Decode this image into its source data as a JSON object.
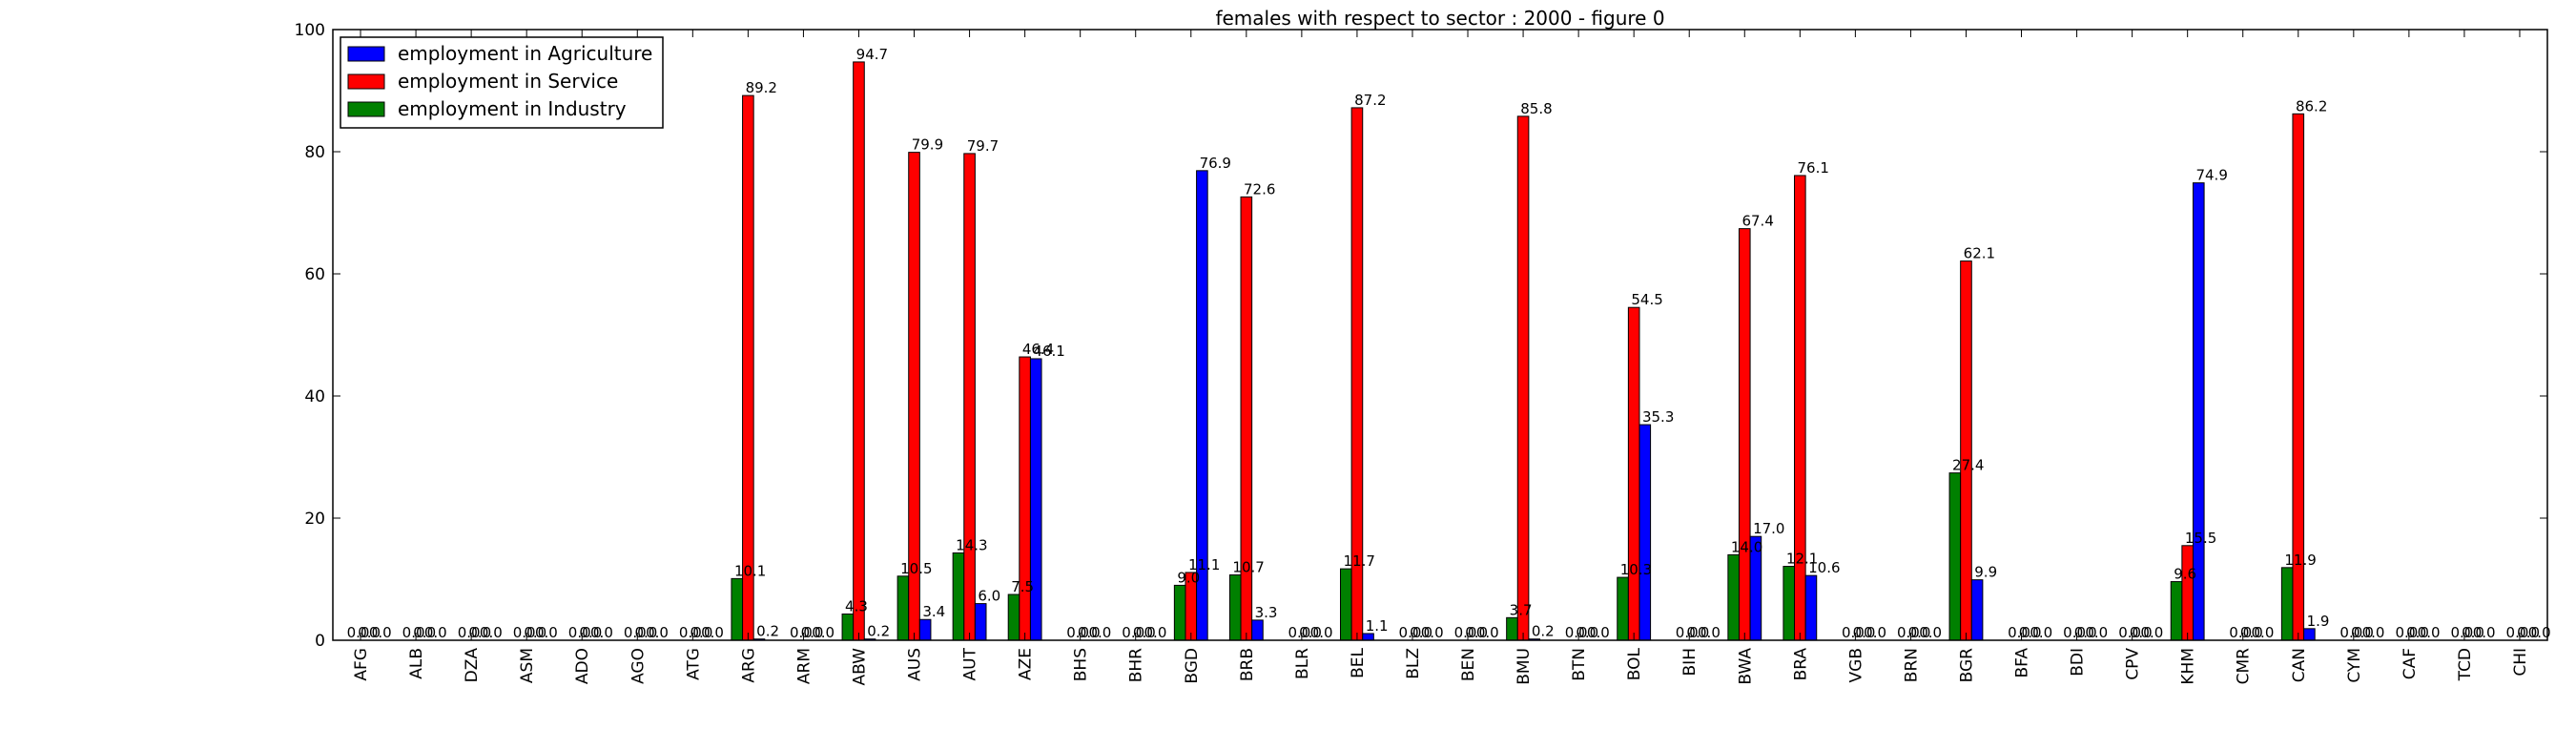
{
  "chart_data": {
    "type": "bar",
    "title": "females with respect to sector : 2000 - figure 0",
    "xlabel": "",
    "ylabel": "",
    "ylim": [
      0,
      100
    ],
    "yticks": [
      0,
      20,
      40,
      60,
      80,
      100
    ],
    "grid": false,
    "legend_position": "top-left",
    "categories": [
      "AFG",
      "ALB",
      "DZA",
      "ASM",
      "ADO",
      "AGO",
      "ATG",
      "ARG",
      "ARM",
      "ABW",
      "AUS",
      "AUT",
      "AZE",
      "BHS",
      "BHR",
      "BGD",
      "BRB",
      "BLR",
      "BEL",
      "BLZ",
      "BEN",
      "BMU",
      "BTN",
      "BOL",
      "BIH",
      "BWA",
      "BRA",
      "VGB",
      "BRN",
      "BGR",
      "BFA",
      "BDI",
      "CPV",
      "KHM",
      "CMR",
      "CAN",
      "CYM",
      "CAF",
      "TCD",
      "CHI"
    ],
    "series": [
      {
        "name": "employment in Industry",
        "color": "#008000",
        "values": [
          0,
          0,
          0,
          0,
          0,
          0,
          0,
          10.1,
          0,
          4.3,
          10.5,
          14.3,
          7.5,
          0,
          0,
          9.0,
          10.7,
          0,
          11.7,
          0,
          0,
          3.7,
          0,
          10.3,
          0,
          14.0,
          12.1,
          0,
          0,
          27.4,
          0,
          0,
          0,
          9.6,
          0,
          11.9,
          0,
          0,
          0,
          0
        ],
        "labels": [
          "0.0",
          "0.0",
          "0.0",
          "0.0",
          "0.0",
          "0.0",
          "0.0",
          "10.1",
          "0.0",
          "4.3",
          "10.5",
          "14.3",
          "7.5",
          "0.0",
          "0.0",
          "9.0",
          "10.7",
          "0.0",
          "11.7",
          "0.0",
          "0.0",
          "3.7",
          "0.0",
          "10.3",
          "0.0",
          "14.0",
          "12.1",
          "0.0",
          "0.0",
          "27.4",
          "0.0",
          "0.0",
          "0.0",
          "9.6",
          "0.0",
          "11.9",
          "0.0",
          "0.0",
          "0.0",
          "0.0"
        ]
      },
      {
        "name": "employment in Service",
        "color": "#ff0000",
        "values": [
          0,
          0,
          0,
          0,
          0,
          0,
          0,
          89.2,
          0,
          94.7,
          79.9,
          79.7,
          46.4,
          0,
          0,
          11.1,
          72.6,
          0,
          87.2,
          0,
          0,
          85.8,
          0,
          54.5,
          0,
          67.4,
          76.1,
          0,
          0,
          62.1,
          0,
          0,
          0,
          15.5,
          0,
          86.2,
          0,
          0,
          0,
          0
        ],
        "labels": [
          "0.0",
          "0.0",
          "0.0",
          "0.0",
          "0.0",
          "0.0",
          "0.0",
          "89.2",
          "0.0",
          "94.7",
          "79.9",
          "79.7",
          "46.4",
          "0.0",
          "0.0",
          "11.1",
          "72.6",
          "0.0",
          "87.2",
          "0.0",
          "0.0",
          "85.8",
          "0.0",
          "54.5",
          "0.0",
          "67.4",
          "76.1",
          "0.0",
          "0.0",
          "62.1",
          "0.0",
          "0.0",
          "0.0",
          "15.5",
          "0.0",
          "86.2",
          "0.0",
          "0.0",
          "0.0",
          "0.0"
        ]
      },
      {
        "name": "employment in Agriculture",
        "color": "#0000ff",
        "values": [
          0,
          0,
          0,
          0,
          0,
          0,
          0,
          0.2,
          0,
          0.2,
          3.4,
          6.0,
          46.1,
          0,
          0,
          76.9,
          3.3,
          0,
          1.1,
          0,
          0,
          0.2,
          0,
          35.3,
          0,
          17.0,
          10.6,
          0,
          0,
          9.9,
          0,
          0,
          0,
          74.9,
          0,
          1.9,
          0,
          0,
          0,
          0
        ],
        "labels": [
          "0.0",
          "0.0",
          "0.0",
          "0.0",
          "0.0",
          "0.0",
          "0.0",
          "0.2",
          "0.0",
          "0.2",
          "3.4",
          "6.0",
          "46.1",
          "0.0",
          "0.0",
          "76.9",
          "3.3",
          "0.0",
          "1.1",
          "0.0",
          "0.0",
          "0.2",
          "0.0",
          "35.3",
          "0.0",
          "17.0",
          "10.6",
          "0.0",
          "0.0",
          "9.9",
          "0.0",
          "0.0",
          "0.0",
          "74.9",
          "0.0",
          "1.9",
          "0.0",
          "0.0",
          "0.0",
          "0.0"
        ]
      }
    ],
    "legend": [
      {
        "name": "employment in Agriculture",
        "color": "#0000ff"
      },
      {
        "name": "employment in Service",
        "color": "#ff0000"
      },
      {
        "name": "employment in Industry",
        "color": "#008000"
      }
    ]
  }
}
